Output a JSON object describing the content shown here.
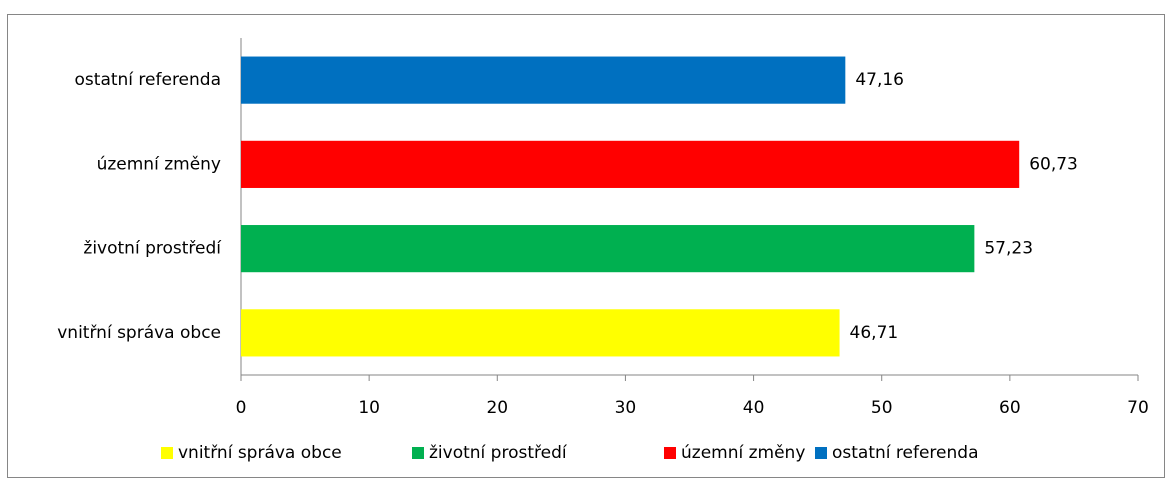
{
  "chart_data": {
    "type": "bar",
    "orientation": "horizontal",
    "categories": [
      "vnitřní správa obce",
      "životní prostředí",
      "územní změny",
      "ostatní referenda"
    ],
    "values": [
      46.71,
      57.23,
      60.73,
      47.16
    ],
    "value_labels": [
      "46,71",
      "57,23",
      "60,73",
      "47,16"
    ],
    "colors": [
      "#ffff00",
      "#00b050",
      "#ff0000",
      "#0070c0"
    ],
    "xlim": [
      0,
      70
    ],
    "xticks": [
      0,
      10,
      20,
      30,
      40,
      50,
      60,
      70
    ],
    "legend": "bottom"
  }
}
